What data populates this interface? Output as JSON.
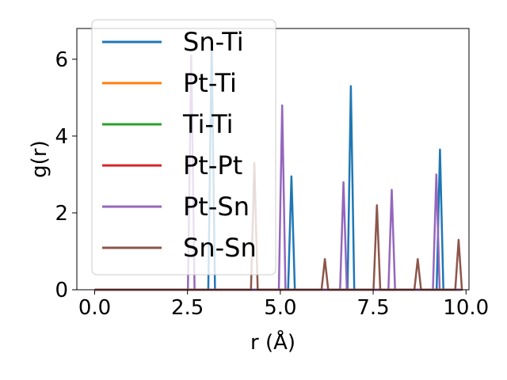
{
  "chart_data": {
    "type": "line",
    "title": "",
    "xlabel": "r (Å)",
    "ylabel": "g(r)",
    "xlim": [
      -0.48,
      10.08
    ],
    "ylim": [
      0,
      6.8
    ],
    "xticks": [
      0.0,
      2.5,
      5.0,
      7.5,
      10.0
    ],
    "xtick_labels": [
      "0.0",
      "2.5",
      "5.0",
      "7.5",
      "10.0"
    ],
    "yticks": [
      0,
      2,
      4,
      6
    ],
    "ytick_labels": [
      "0",
      "2",
      "4",
      "6"
    ],
    "grid": false,
    "legend_position": "top-left",
    "x_range": [
      0.0,
      9.85
    ],
    "series": [
      {
        "name": "Sn-Ti",
        "color": "#1f77b4",
        "peaks": [
          [
            3.15,
            6.4
          ],
          [
            5.3,
            2.95
          ],
          [
            6.9,
            5.3
          ],
          [
            9.3,
            3.65
          ]
        ]
      },
      {
        "name": "Pt-Ti",
        "color": "#ff7f0e",
        "peaks": []
      },
      {
        "name": "Ti-Ti",
        "color": "#2ca02c",
        "peaks": []
      },
      {
        "name": "Pt-Pt",
        "color": "#d62728",
        "peaks": []
      },
      {
        "name": "Pt-Sn",
        "color": "#9467bd",
        "peaks": [
          [
            2.6,
            6.1
          ],
          [
            5.05,
            4.8
          ],
          [
            6.7,
            2.8
          ],
          [
            8.0,
            2.6
          ],
          [
            9.2,
            3.0
          ]
        ]
      },
      {
        "name": "Sn-Sn",
        "color": "#8c564b",
        "peaks": [
          [
            4.3,
            3.3
          ],
          [
            6.2,
            0.8
          ],
          [
            7.6,
            2.2
          ],
          [
            8.7,
            0.8
          ],
          [
            9.8,
            1.3
          ]
        ]
      }
    ]
  }
}
